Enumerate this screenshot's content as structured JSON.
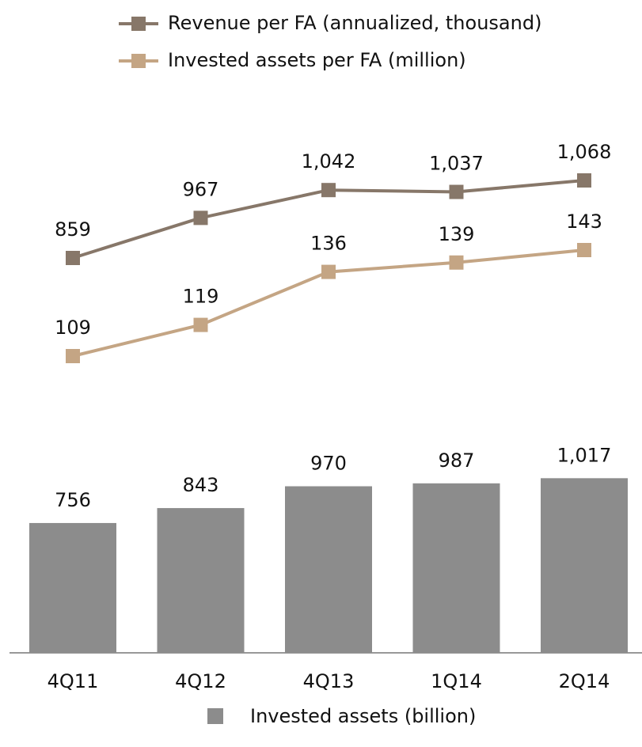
{
  "chart_data": {
    "type": "bar",
    "categories": [
      "4Q11",
      "4Q12",
      "4Q13",
      "1Q14",
      "2Q14"
    ],
    "series": [
      {
        "name": "Revenue per FA (annualized, thousand)",
        "type": "line",
        "color": "#877769",
        "values": [
          859,
          967,
          1042,
          1037,
          1068
        ],
        "value_labels": [
          "859",
          "967",
          "1,042",
          "1,037",
          "1,068"
        ]
      },
      {
        "name": "Invested assets per FA (million)",
        "type": "line",
        "color": "#c4a584",
        "values": [
          109,
          119,
          136,
          139,
          143
        ]
      },
      {
        "name": "Invested assets (billion)",
        "type": "bar",
        "color": "#8c8c8c",
        "values": [
          756,
          843,
          970,
          987,
          1017
        ],
        "value_labels": [
          "756",
          "843",
          "970",
          "987",
          "1,017"
        ]
      }
    ]
  }
}
